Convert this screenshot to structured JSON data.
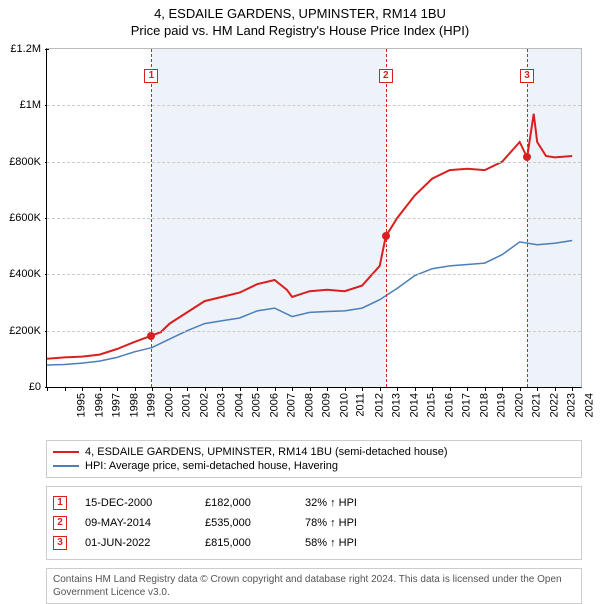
{
  "title": "4, ESDAILE GARDENS, UPMINSTER, RM14 1BU",
  "subtitle": "Price paid vs. HM Land Registry's House Price Index (HPI)",
  "chart": {
    "type": "line",
    "background_color": "#ffffff",
    "shade_color": "#eef2f9",
    "grid_color": "#cccccc",
    "ylim": [
      0,
      1200000
    ],
    "ytick_step": 200000,
    "yticks": [
      {
        "v": 0,
        "label": "£0"
      },
      {
        "v": 200000,
        "label": "£200K"
      },
      {
        "v": 400000,
        "label": "£400K"
      },
      {
        "v": 600000,
        "label": "£600K"
      },
      {
        "v": 800000,
        "label": "£800K"
      },
      {
        "v": 1000000,
        "label": "£1M"
      },
      {
        "v": 1200000,
        "label": "£1.2M"
      }
    ],
    "xlim": [
      1995,
      2025.5
    ],
    "xticks": [
      1995,
      1996,
      1997,
      1998,
      1999,
      2000,
      2001,
      2002,
      2003,
      2004,
      2005,
      2006,
      2007,
      2008,
      2009,
      2010,
      2011,
      2012,
      2013,
      2014,
      2015,
      2016,
      2017,
      2018,
      2019,
      2020,
      2021,
      2022,
      2023,
      2024,
      2025
    ],
    "shaded_ranges": [
      [
        2001,
        2014.35
      ],
      [
        2022.42,
        2025.5
      ]
    ],
    "series_property": {
      "label": "4, ESDAILE GARDENS, UPMINSTER, RM14 1BU (semi-detached house)",
      "color": "#d92020",
      "line_width": 2,
      "points": [
        [
          1995,
          100000
        ],
        [
          1996,
          105000
        ],
        [
          1997,
          108000
        ],
        [
          1998,
          115000
        ],
        [
          1999,
          135000
        ],
        [
          2000,
          160000
        ],
        [
          2000.96,
          182000
        ],
        [
          2001.5,
          195000
        ],
        [
          2002,
          225000
        ],
        [
          2003,
          265000
        ],
        [
          2004,
          305000
        ],
        [
          2005,
          320000
        ],
        [
          2006,
          335000
        ],
        [
          2007,
          365000
        ],
        [
          2008,
          380000
        ],
        [
          2008.7,
          345000
        ],
        [
          2009,
          320000
        ],
        [
          2010,
          340000
        ],
        [
          2011,
          345000
        ],
        [
          2012,
          340000
        ],
        [
          2013,
          360000
        ],
        [
          2014,
          430000
        ],
        [
          2014.35,
          535000
        ],
        [
          2015,
          600000
        ],
        [
          2016,
          680000
        ],
        [
          2017,
          740000
        ],
        [
          2018,
          770000
        ],
        [
          2019,
          775000
        ],
        [
          2020,
          770000
        ],
        [
          2021,
          800000
        ],
        [
          2022,
          870000
        ],
        [
          2022.42,
          815000
        ],
        [
          2022.8,
          970000
        ],
        [
          2023,
          870000
        ],
        [
          2023.5,
          820000
        ],
        [
          2024,
          815000
        ],
        [
          2025,
          820000
        ]
      ]
    },
    "series_hpi": {
      "label": "HPI: Average price, semi-detached house, Havering",
      "color": "#4a7fb8",
      "line_width": 1.5,
      "points": [
        [
          1995,
          78000
        ],
        [
          1996,
          80000
        ],
        [
          1997,
          85000
        ],
        [
          1998,
          92000
        ],
        [
          1999,
          105000
        ],
        [
          2000,
          125000
        ],
        [
          2001,
          140000
        ],
        [
          2002,
          170000
        ],
        [
          2003,
          200000
        ],
        [
          2004,
          225000
        ],
        [
          2005,
          235000
        ],
        [
          2006,
          245000
        ],
        [
          2007,
          270000
        ],
        [
          2008,
          280000
        ],
        [
          2009,
          250000
        ],
        [
          2010,
          265000
        ],
        [
          2011,
          268000
        ],
        [
          2012,
          270000
        ],
        [
          2013,
          280000
        ],
        [
          2014,
          310000
        ],
        [
          2015,
          350000
        ],
        [
          2016,
          395000
        ],
        [
          2017,
          420000
        ],
        [
          2018,
          430000
        ],
        [
          2019,
          435000
        ],
        [
          2020,
          440000
        ],
        [
          2021,
          470000
        ],
        [
          2022,
          515000
        ],
        [
          2023,
          505000
        ],
        [
          2024,
          510000
        ],
        [
          2025,
          520000
        ]
      ]
    },
    "markers": [
      {
        "n": "1",
        "x": 2000.96,
        "y": 182000,
        "color": "#d92020",
        "box_top": 20
      },
      {
        "n": "2",
        "x": 2014.35,
        "y": 535000,
        "color": "#d92020",
        "box_top": 20
      },
      {
        "n": "3",
        "x": 2022.42,
        "y": 815000,
        "color": "#d92020",
        "box_top": 20
      }
    ],
    "title_fontsize": 13,
    "label_fontsize": 11
  },
  "legend": {
    "rows": [
      {
        "color": "#d92020",
        "label": "4, ESDAILE GARDENS, UPMINSTER, RM14 1BU (semi-detached house)"
      },
      {
        "color": "#4a7fb8",
        "label": "HPI: Average price, semi-detached house, Havering"
      }
    ]
  },
  "facts": {
    "rows": [
      {
        "n": "1",
        "color": "#d92020",
        "date": "15-DEC-2000",
        "price": "£182,000",
        "delta": "32% ↑ HPI"
      },
      {
        "n": "2",
        "color": "#d92020",
        "date": "09-MAY-2014",
        "price": "£535,000",
        "delta": "78% ↑ HPI"
      },
      {
        "n": "3",
        "color": "#d92020",
        "date": "01-JUN-2022",
        "price": "£815,000",
        "delta": "58% ↑ HPI"
      }
    ]
  },
  "attribution": "Contains HM Land Registry data © Crown copyright and database right 2024. This data is licensed under the Open Government Licence v3.0."
}
